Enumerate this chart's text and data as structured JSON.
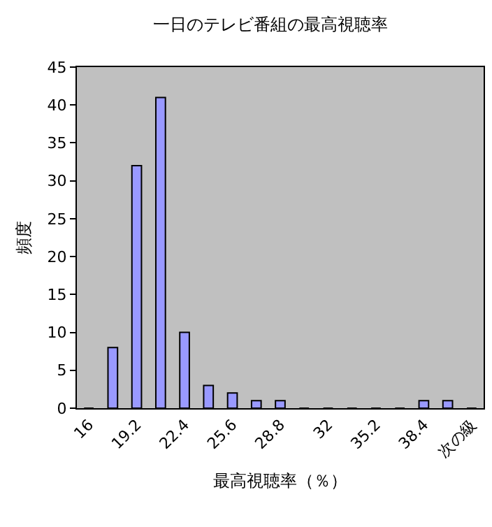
{
  "chart_data": {
    "type": "bar",
    "title": "一日のテレビ番組の最高視聴率",
    "xlabel": "最高視聴率（％）",
    "ylabel": "頻度",
    "categories": [
      "16",
      null,
      "19.2",
      null,
      "22.4",
      null,
      "25.6",
      null,
      "28.8",
      null,
      "32",
      null,
      "35.2",
      null,
      "38.4",
      null,
      "次の級"
    ],
    "values": [
      0,
      8,
      32,
      41,
      10,
      3,
      2,
      1,
      1,
      0,
      0,
      0,
      0,
      0,
      1,
      1,
      0
    ],
    "color": "#9999ff",
    "ylim": [
      0,
      45
    ],
    "yticks": [
      0,
      5,
      10,
      15,
      20,
      25,
      30,
      35,
      40,
      45
    ],
    "grid": false,
    "legend": false
  }
}
